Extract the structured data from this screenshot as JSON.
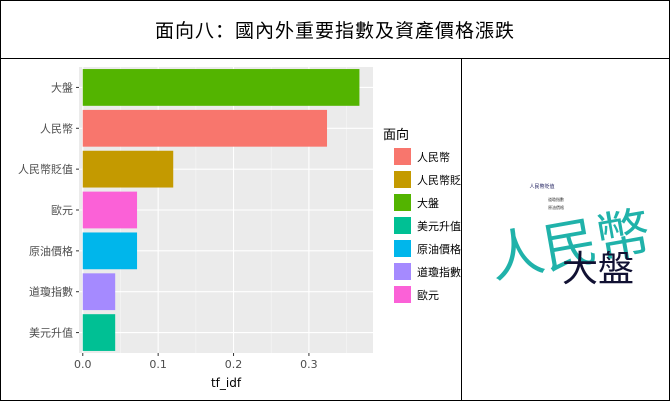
{
  "header": {
    "title": "面向八：國內外重要指數及資產價格漲跌"
  },
  "chart_data": {
    "type": "bar",
    "orientation": "horizontal",
    "categories": [
      "大盤",
      "人民幣",
      "人民幣貶值",
      "歐元",
      "原油價格",
      "道瓊指數",
      "美元升值"
    ],
    "values": [
      0.367,
      0.324,
      0.12,
      0.072,
      0.072,
      0.043,
      0.043
    ],
    "xlabel": "tf_idf",
    "ylabel": "",
    "xlim": [
      -0.005,
      0.385
    ],
    "xticks": [
      0.0,
      0.1,
      0.2,
      0.3
    ],
    "xtick_labels": [
      "0.0",
      "0.1",
      "0.2",
      "0.3"
    ],
    "grid": true,
    "legend": {
      "title": "面向",
      "placement": "right",
      "entries": [
        {
          "label": "人民幣",
          "color": "#F8766D"
        },
        {
          "label": "人民幣貶值",
          "color": "#C49A00"
        },
        {
          "label": "大盤",
          "color": "#53B400"
        },
        {
          "label": "美元升值",
          "color": "#00C094"
        },
        {
          "label": "原油價格",
          "color": "#00B6EB"
        },
        {
          "label": "道瓊指數",
          "color": "#A58AFF"
        },
        {
          "label": "歐元",
          "color": "#FB61D7"
        }
      ]
    },
    "colors": {
      "大盤": "#53B400",
      "人民幣": "#F8766D",
      "人民幣貶值": "#C49A00",
      "歐元": "#FB61D7",
      "原油價格": "#00B6EB",
      "道瓊指數": "#A58AFF",
      "美元升值": "#00C094"
    },
    "panel_background": "#EBEBEB"
  },
  "wordcloud": {
    "words": [
      {
        "text": "人民幣",
        "color": "#20B2AA",
        "rank": 1
      },
      {
        "text": "大盤",
        "color": "#111133",
        "rank": 2
      },
      {
        "text": "人民幣貶值",
        "color": "#1a1a5a",
        "rank": 3
      },
      {
        "text": "道瓊指數",
        "color": "#333333",
        "rank": 4
      },
      {
        "text": "原油價格",
        "color": "#333333",
        "rank": 5
      }
    ]
  }
}
